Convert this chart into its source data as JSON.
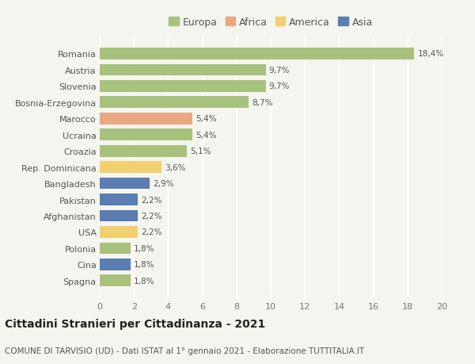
{
  "countries": [
    "Romania",
    "Austria",
    "Slovenia",
    "Bosnia-Erzegovina",
    "Marocco",
    "Ucraina",
    "Croazia",
    "Rep. Dominicana",
    "Bangladesh",
    "Pakistan",
    "Afghanistan",
    "USA",
    "Polonia",
    "Cina",
    "Spagna"
  ],
  "values": [
    18.4,
    9.7,
    9.7,
    8.7,
    5.4,
    5.4,
    5.1,
    3.6,
    2.9,
    2.2,
    2.2,
    2.2,
    1.8,
    1.8,
    1.8
  ],
  "labels": [
    "18,4%",
    "9,7%",
    "9,7%",
    "8,7%",
    "5,4%",
    "5,4%",
    "5,1%",
    "3,6%",
    "2,9%",
    "2,2%",
    "2,2%",
    "2,2%",
    "1,8%",
    "1,8%",
    "1,8%"
  ],
  "show_label": [
    true,
    true,
    true,
    true,
    true,
    true,
    true,
    true,
    true,
    true,
    true,
    true,
    true,
    true,
    true
  ],
  "categories": [
    "Europa",
    "Africa",
    "America",
    "Asia"
  ],
  "colors_map": {
    "Romania": "#a8c17c",
    "Austria": "#a8c17c",
    "Slovenia": "#a8c17c",
    "Bosnia-Erzegovina": "#a8c17c",
    "Marocco": "#e8a882",
    "Ucraina": "#a8c17c",
    "Croazia": "#a8c17c",
    "Rep. Dominicana": "#f0d070",
    "Bangladesh": "#5b7db1",
    "Pakistan": "#5b7db1",
    "Afghanistan": "#5b7db1",
    "USA": "#f0d070",
    "Polonia": "#a8c17c",
    "Cina": "#5b7db1",
    "Spagna": "#a8c17c"
  },
  "legend_colors": {
    "Europa": "#a8c17c",
    "Africa": "#e8a882",
    "America": "#f0d070",
    "Asia": "#5b7db1"
  },
  "xlim": [
    0,
    20
  ],
  "xticks": [
    0,
    2,
    4,
    6,
    8,
    10,
    12,
    14,
    16,
    18,
    20
  ],
  "title": "Cittadini Stranieri per Cittadinanza - 2021",
  "subtitle": "COMUNE DI TARVISIO (UD) - Dati ISTAT al 1° gennaio 2021 - Elaborazione TUTTITALIA.IT",
  "bg_color": "#f5f5f0",
  "bar_height": 0.72,
  "title_fontsize": 10,
  "subtitle_fontsize": 7.5,
  "label_fontsize": 7.5,
  "tick_fontsize": 8,
  "legend_fontsize": 9
}
